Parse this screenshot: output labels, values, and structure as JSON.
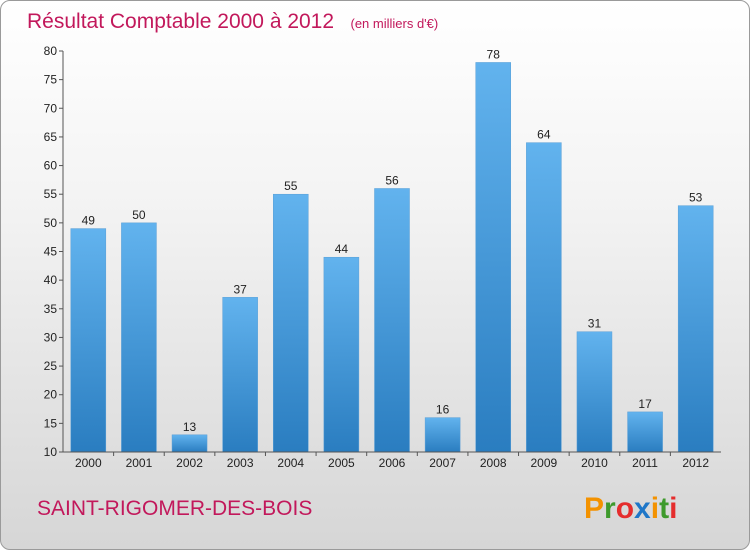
{
  "chart_data": {
    "type": "bar",
    "title": "Résultat Comptable 2000 à 2012",
    "subtitle": "(en milliers d'€)",
    "categories": [
      "2000",
      "2001",
      "2002",
      "2003",
      "2004",
      "2005",
      "2006",
      "2007",
      "2008",
      "2009",
      "2010",
      "2011",
      "2012"
    ],
    "values": [
      49,
      50,
      13,
      37,
      55,
      44,
      56,
      16,
      78,
      64,
      31,
      17,
      53
    ],
    "ylim": [
      10,
      80
    ],
    "yticks": [
      10,
      15,
      20,
      25,
      30,
      35,
      40,
      45,
      50,
      55,
      60,
      65,
      70,
      75,
      80
    ],
    "grid": false,
    "colors": {
      "bar_light": "#62b3ee",
      "bar_dark": "#2a7dc0",
      "title": "#c2185b"
    }
  },
  "footer": {
    "commune": "SAINT-RIGOMER-DES-BOIS",
    "logo_letters": [
      "P",
      "r",
      "o",
      "x",
      "i",
      "t",
      "i"
    ],
    "logo_colors": [
      "#f39200",
      "#3e9a2c",
      "#e52d2d",
      "#1f77c8",
      "#f39200",
      "#3e9a2c",
      "#e52d2d"
    ]
  }
}
